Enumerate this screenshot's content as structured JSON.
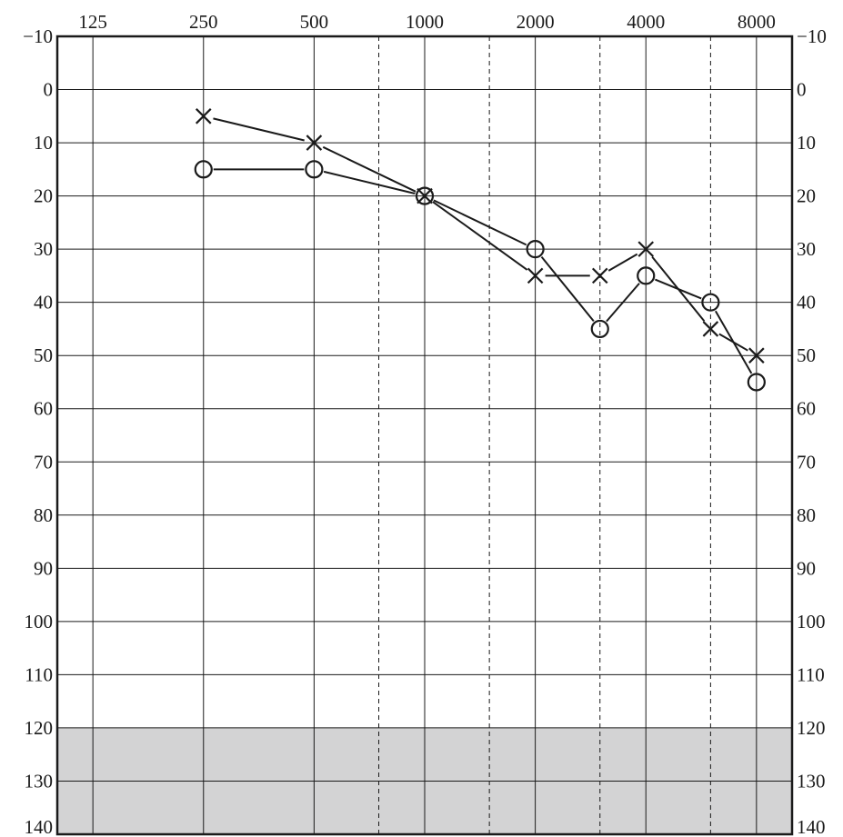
{
  "chart_data": {
    "type": "line",
    "x_axis": {
      "scale": "log2",
      "position": "top",
      "tick_labels": [
        "125",
        "250",
        "500",
        "1000",
        "2000",
        "4000",
        "8000"
      ],
      "major_ticks": [
        125,
        250,
        500,
        1000,
        2000,
        4000,
        8000
      ],
      "minor_ticks_dashed": [
        750,
        1500,
        3000,
        6000
      ],
      "xlim": [
        100,
        10000
      ]
    },
    "y_axis": {
      "inverted": true,
      "tick_labels": [
        "−10",
        "0",
        "10",
        "20",
        "30",
        "40",
        "50",
        "60",
        "70",
        "80",
        "90",
        "100",
        "110",
        "120",
        "130",
        "140"
      ],
      "ticks": [
        -10,
        0,
        10,
        20,
        30,
        40,
        50,
        60,
        70,
        80,
        90,
        100,
        110,
        120,
        130,
        140
      ],
      "ylim": [
        -10,
        140
      ],
      "labels_on_both_sides": true
    },
    "grid": true,
    "shaded_region": {
      "y_from": 120,
      "y_to": 140,
      "color": "#d3d3d4"
    },
    "series": [
      {
        "marker": "x",
        "points": [
          {
            "x": 250,
            "y": 5
          },
          {
            "x": 500,
            "y": 10
          },
          {
            "x": 1000,
            "y": 20
          },
          {
            "x": 2000,
            "y": 35
          },
          {
            "x": 3000,
            "y": 35
          },
          {
            "x": 4000,
            "y": 30
          },
          {
            "x": 6000,
            "y": 45
          },
          {
            "x": 8000,
            "y": 50
          }
        ]
      },
      {
        "marker": "o",
        "points": [
          {
            "x": 250,
            "y": 15
          },
          {
            "x": 500,
            "y": 15
          },
          {
            "x": 1000,
            "y": 20
          },
          {
            "x": 2000,
            "y": 30
          },
          {
            "x": 3000,
            "y": 45
          },
          {
            "x": 4000,
            "y": 35
          },
          {
            "x": 6000,
            "y": 40
          },
          {
            "x": 8000,
            "y": 55
          }
        ]
      }
    ],
    "colors": {
      "ink": "#1a1a1a",
      "shade": "#d3d3d4",
      "background": "#ffffff"
    }
  }
}
